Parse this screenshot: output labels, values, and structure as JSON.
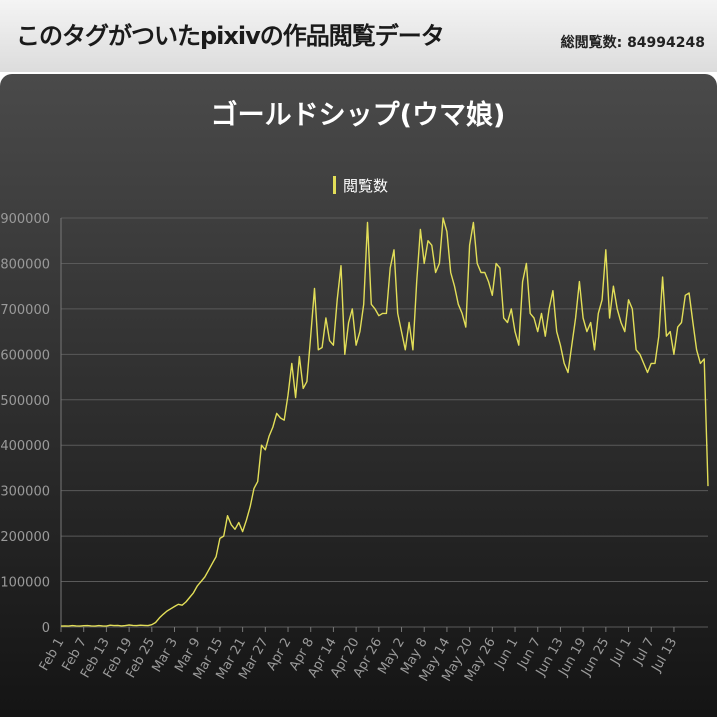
{
  "header": {
    "title": "このタグがついたpixivの作品閲覧データ",
    "total_label": "総閲覧数: 84994248"
  },
  "colors": {
    "series": "#e2de58",
    "grid": "#5a5a5a",
    "tick": "#9a9a9a"
  },
  "chart_data": {
    "type": "line",
    "title": "ゴールドシップ(ウマ娘)",
    "legend": "閲覧数",
    "legend_position": "top-center",
    "ylim": [
      0,
      900000
    ],
    "yticks": [
      "900000",
      "800000",
      "700000",
      "600000",
      "500000",
      "400000",
      "300000",
      "200000",
      "100000",
      "0"
    ],
    "x_tick_labels": [
      "Feb 1",
      "Feb 7",
      "Feb 13",
      "Feb 19",
      "Feb 25",
      "Mar 3",
      "Mar 9",
      "Mar 15",
      "Mar 21",
      "Mar 27",
      "Apr 2",
      "Apr 8",
      "Apr 14",
      "Apr 20",
      "Apr 26",
      "May 2",
      "May 8",
      "May 14",
      "May 20",
      "May 26",
      "Jun 1",
      "Jun 7",
      "Jun 13",
      "Jun 19",
      "Jun 25",
      "Jul 1",
      "Jul 7",
      "Jul 13"
    ],
    "start_date": "Feb 1",
    "series": [
      {
        "name": "閲覧数",
        "values": [
          2000,
          2500,
          2000,
          3000,
          2500,
          2000,
          2800,
          3000,
          2500,
          2000,
          3000,
          2500,
          2000,
          4000,
          3000,
          3500,
          2500,
          3000,
          4500,
          3500,
          3000,
          4000,
          3500,
          3000,
          5000,
          10000,
          20000,
          28000,
          35000,
          40000,
          45000,
          50000,
          48000,
          55000,
          65000,
          75000,
          90000,
          100000,
          110000,
          125000,
          140000,
          155000,
          195000,
          200000,
          245000,
          225000,
          215000,
          230000,
          210000,
          235000,
          265000,
          305000,
          320000,
          400000,
          390000,
          420000,
          440000,
          470000,
          460000,
          455000,
          510000,
          580000,
          505000,
          595000,
          525000,
          540000,
          640000,
          745000,
          610000,
          615000,
          680000,
          630000,
          620000,
          720000,
          795000,
          600000,
          670000,
          700000,
          620000,
          650000,
          710000,
          890000,
          710000,
          700000,
          685000,
          690000,
          690000,
          790000,
          830000,
          690000,
          650000,
          610000,
          670000,
          610000,
          760000,
          875000,
          800000,
          850000,
          840000,
          780000,
          800000,
          900000,
          870000,
          780000,
          750000,
          710000,
          690000,
          660000,
          840000,
          890000,
          800000,
          780000,
          780000,
          760000,
          730000,
          800000,
          790000,
          680000,
          670000,
          700000,
          650000,
          620000,
          760000,
          800000,
          690000,
          680000,
          650000,
          690000,
          640000,
          700000,
          740000,
          650000,
          620000,
          580000,
          560000,
          620000,
          680000,
          760000,
          680000,
          650000,
          670000,
          610000,
          690000,
          720000,
          830000,
          680000,
          750000,
          700000,
          670000,
          650000,
          720000,
          700000,
          610000,
          600000,
          580000,
          560000,
          580000,
          580000,
          640000,
          770000,
          640000,
          650000,
          600000,
          660000,
          670000,
          730000,
          735000,
          670000,
          610000,
          580000,
          590000,
          310000
        ]
      }
    ]
  }
}
